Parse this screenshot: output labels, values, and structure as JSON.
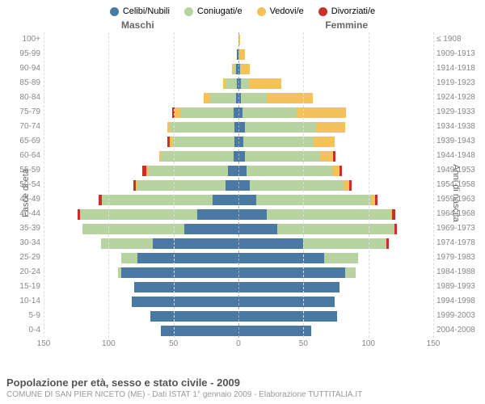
{
  "legend": [
    {
      "label": "Celibi/Nubili",
      "color": "#4a7aa3"
    },
    {
      "label": "Coniugati/e",
      "color": "#b7d3a0"
    },
    {
      "label": "Vedovi/e",
      "color": "#f5c15b"
    },
    {
      "label": "Divorziati/e",
      "color": "#c9302c"
    }
  ],
  "header": {
    "male": "Maschi",
    "female": "Femmine",
    "topYear": "≤ 1908"
  },
  "axis": {
    "yLeftLabel": "Fasce di età",
    "yRightLabel": "Anni di nascita",
    "xmax": 150,
    "xticks": [
      150,
      100,
      50,
      0,
      50,
      100,
      150
    ]
  },
  "rows": [
    {
      "age": "100+",
      "year": "≤ 1908",
      "m": [
        0,
        0,
        0,
        0
      ],
      "f": [
        0,
        0,
        1,
        0
      ]
    },
    {
      "age": "95-99",
      "year": "1909-1913",
      "m": [
        1,
        0,
        0,
        0
      ],
      "f": [
        0,
        0,
        5,
        0
      ]
    },
    {
      "age": "90-94",
      "year": "1914-1918",
      "m": [
        2,
        2,
        1,
        0
      ],
      "f": [
        1,
        1,
        7,
        0
      ]
    },
    {
      "age": "85-89",
      "year": "1919-1923",
      "m": [
        1,
        9,
        2,
        0
      ],
      "f": [
        2,
        6,
        25,
        0
      ]
    },
    {
      "age": "80-84",
      "year": "1924-1928",
      "m": [
        2,
        20,
        5,
        0
      ],
      "f": [
        2,
        20,
        35,
        0
      ]
    },
    {
      "age": "75-79",
      "year": "1929-1933",
      "m": [
        4,
        40,
        5,
        2
      ],
      "f": [
        3,
        42,
        38,
        0
      ]
    },
    {
      "age": "70-74",
      "year": "1934-1938",
      "m": [
        3,
        50,
        2,
        0
      ],
      "f": [
        5,
        55,
        22,
        0
      ]
    },
    {
      "age": "65-69",
      "year": "1939-1943",
      "m": [
        3,
        48,
        2,
        2
      ],
      "f": [
        4,
        54,
        16,
        0
      ]
    },
    {
      "age": "60-64",
      "year": "1944-1948",
      "m": [
        4,
        55,
        2,
        0
      ],
      "f": [
        5,
        58,
        10,
        2
      ]
    },
    {
      "age": "55-59",
      "year": "1949-1953",
      "m": [
        8,
        62,
        1,
        3
      ],
      "f": [
        6,
        66,
        6,
        2
      ]
    },
    {
      "age": "50-54",
      "year": "1954-1958",
      "m": [
        10,
        68,
        1,
        2
      ],
      "f": [
        9,
        72,
        4,
        2
      ]
    },
    {
      "age": "45-49",
      "year": "1959-1963",
      "m": [
        20,
        85,
        0,
        3
      ],
      "f": [
        14,
        88,
        3,
        2
      ]
    },
    {
      "age": "40-44",
      "year": "1964-1968",
      "m": [
        32,
        90,
        0,
        2
      ],
      "f": [
        22,
        95,
        1,
        3
      ]
    },
    {
      "age": "35-39",
      "year": "1969-1973",
      "m": [
        42,
        78,
        0,
        0
      ],
      "f": [
        30,
        90,
        0,
        2
      ]
    },
    {
      "age": "30-34",
      "year": "1974-1978",
      "m": [
        66,
        40,
        0,
        0
      ],
      "f": [
        50,
        64,
        0,
        2
      ]
    },
    {
      "age": "25-29",
      "year": "1979-1983",
      "m": [
        78,
        12,
        0,
        0
      ],
      "f": [
        66,
        26,
        0,
        0
      ]
    },
    {
      "age": "20-24",
      "year": "1984-1988",
      "m": [
        90,
        3,
        0,
        0
      ],
      "f": [
        82,
        8,
        0,
        0
      ]
    },
    {
      "age": "15-19",
      "year": "1989-1993",
      "m": [
        80,
        0,
        0,
        0
      ],
      "f": [
        78,
        0,
        0,
        0
      ]
    },
    {
      "age": "10-14",
      "year": "1994-1998",
      "m": [
        82,
        0,
        0,
        0
      ],
      "f": [
        74,
        0,
        0,
        0
      ]
    },
    {
      "age": "5-9",
      "year": "1999-2003",
      "m": [
        68,
        0,
        0,
        0
      ],
      "f": [
        76,
        0,
        0,
        0
      ]
    },
    {
      "age": "0-4",
      "year": "2004-2008",
      "m": [
        60,
        0,
        0,
        0
      ],
      "f": [
        56,
        0,
        0,
        0
      ]
    }
  ],
  "footer": {
    "title": "Popolazione per età, sesso e stato civile - 2009",
    "sub": "COMUNE DI SAN PIER NICETO (ME) - Dati ISTAT 1° gennaio 2009 - Elaborazione TUTTITALIA.IT"
  },
  "colors": {
    "series": [
      "#4a7aa3",
      "#b7d3a0",
      "#f5c15b",
      "#c9302c"
    ],
    "grid": "#dddddd",
    "center": "#aaaaaa"
  }
}
